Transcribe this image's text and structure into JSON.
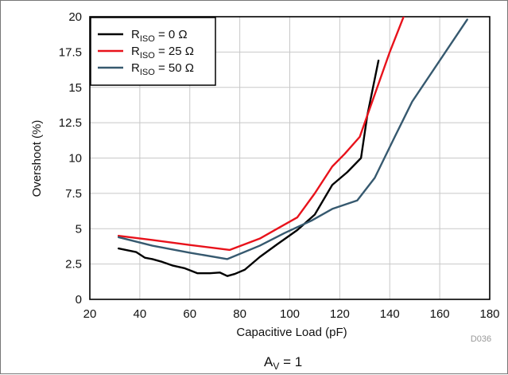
{
  "chart_data": {
    "type": "line",
    "xlabel": "Capacitive Load (pF)",
    "ylabel": "Overshoot (%)",
    "xlim": [
      20,
      180
    ],
    "ylim": [
      0,
      20
    ],
    "x_ticks": [
      "20",
      "40",
      "60",
      "80",
      "100",
      "120",
      "140",
      "160",
      "180"
    ],
    "y_ticks": [
      "0",
      "2.5",
      "5",
      "7.5",
      "10",
      "12.5",
      "15",
      "17.5",
      "20"
    ],
    "grid": true,
    "legend_position": "top-left",
    "series": [
      {
        "name_main": "R",
        "name_sub": "ISO",
        "name_tail": " = 0 Ω",
        "color": "#000000",
        "points": [
          [
            31.5,
            3.6
          ],
          [
            38.5,
            3.35
          ],
          [
            42,
            2.95
          ],
          [
            45,
            2.85
          ],
          [
            49,
            2.65
          ],
          [
            53,
            2.4
          ],
          [
            58,
            2.2
          ],
          [
            63,
            1.85
          ],
          [
            68,
            1.85
          ],
          [
            72,
            1.9
          ],
          [
            75,
            1.65
          ],
          [
            78,
            1.8
          ],
          [
            82,
            2.1
          ],
          [
            88,
            3.0
          ],
          [
            95,
            3.9
          ],
          [
            103,
            4.9
          ],
          [
            110,
            6.0
          ],
          [
            117,
            8.1
          ],
          [
            123,
            9.0
          ],
          [
            128.5,
            10.0
          ],
          [
            131,
            13.0
          ],
          [
            135.5,
            16.9
          ]
        ]
      },
      {
        "name_main": "R",
        "name_sub": "ISO",
        "name_tail": " = 25 Ω",
        "color": "#e8121b",
        "points": [
          [
            31.5,
            4.5
          ],
          [
            45,
            4.2
          ],
          [
            60,
            3.85
          ],
          [
            76,
            3.5
          ],
          [
            88,
            4.3
          ],
          [
            96,
            5.1
          ],
          [
            103,
            5.8
          ],
          [
            110,
            7.5
          ],
          [
            117,
            9.4
          ],
          [
            122,
            10.3
          ],
          [
            128,
            11.5
          ],
          [
            134,
            14.5
          ],
          [
            140,
            17.5
          ],
          [
            146,
            20.2
          ]
        ]
      },
      {
        "name_main": "R",
        "name_sub": "ISO",
        "name_tail": " = 50 Ω",
        "color": "#36596f",
        "points": [
          [
            31.5,
            4.4
          ],
          [
            45,
            3.8
          ],
          [
            60,
            3.3
          ],
          [
            75,
            2.85
          ],
          [
            88,
            3.8
          ],
          [
            98,
            4.7
          ],
          [
            109,
            5.6
          ],
          [
            117,
            6.4
          ],
          [
            127,
            7.0
          ],
          [
            134,
            8.6
          ],
          [
            142,
            11.5
          ],
          [
            149,
            14.0
          ],
          [
            171,
            19.8
          ]
        ]
      }
    ],
    "code": "D036",
    "caption_main": "A",
    "caption_sub": "V",
    "caption_tail": " = 1"
  }
}
